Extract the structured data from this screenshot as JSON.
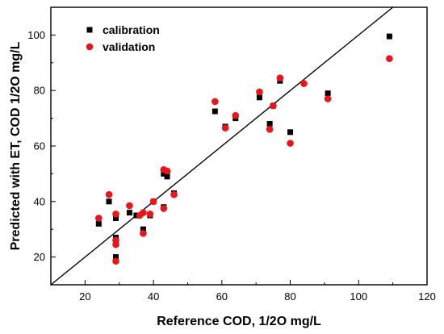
{
  "chart_data": {
    "type": "scatter",
    "xlabel": "Reference COD,  1/2O mg/L",
    "ylabel": "Predicted with ET, COD 1/2O mg/L",
    "xlim": [
      10,
      120
    ],
    "ylim": [
      10,
      110
    ],
    "xticks": [
      20,
      40,
      60,
      80,
      100,
      120
    ],
    "yticks": [
      20,
      40,
      60,
      80,
      100
    ],
    "legend_position": "top-left",
    "grid": false,
    "reference_line": {
      "from": [
        10,
        10
      ],
      "to": [
        110,
        110
      ]
    },
    "series": [
      {
        "name": "calibration",
        "marker": "square",
        "color": "#000000",
        "points": [
          [
            24,
            32
          ],
          [
            27,
            40
          ],
          [
            29,
            34
          ],
          [
            29,
            27
          ],
          [
            29,
            20
          ],
          [
            33,
            36
          ],
          [
            35,
            35
          ],
          [
            37,
            30
          ],
          [
            39,
            35
          ],
          [
            40,
            40
          ],
          [
            43,
            38
          ],
          [
            43,
            50
          ],
          [
            44,
            49
          ],
          [
            44,
            50
          ],
          [
            46,
            43
          ],
          [
            58,
            72.5
          ],
          [
            61,
            67
          ],
          [
            64,
            70
          ],
          [
            71,
            77.5
          ],
          [
            74,
            68
          ],
          [
            75,
            74.5
          ],
          [
            77,
            83.5
          ],
          [
            80,
            65
          ],
          [
            91,
            79
          ],
          [
            109,
            99.5
          ]
        ]
      },
      {
        "name": "validation",
        "marker": "circle",
        "color": "#e8151b",
        "points": [
          [
            24,
            34
          ],
          [
            27,
            42.5
          ],
          [
            29,
            35.5
          ],
          [
            29,
            26
          ],
          [
            29,
            24.5
          ],
          [
            29,
            18.5
          ],
          [
            33,
            38.5
          ],
          [
            36,
            35
          ],
          [
            37,
            36
          ],
          [
            37,
            28.5
          ],
          [
            39,
            35.5
          ],
          [
            40,
            40
          ],
          [
            43,
            37.5
          ],
          [
            43,
            51.5
          ],
          [
            44,
            51
          ],
          [
            46,
            42.5
          ],
          [
            58,
            76
          ],
          [
            61,
            66.5
          ],
          [
            64,
            71
          ],
          [
            71,
            79.5
          ],
          [
            74,
            66
          ],
          [
            75,
            74.5
          ],
          [
            77,
            84.5
          ],
          [
            80,
            61
          ],
          [
            84,
            82.5
          ],
          [
            91,
            77
          ],
          [
            109,
            91.5
          ]
        ]
      }
    ]
  }
}
